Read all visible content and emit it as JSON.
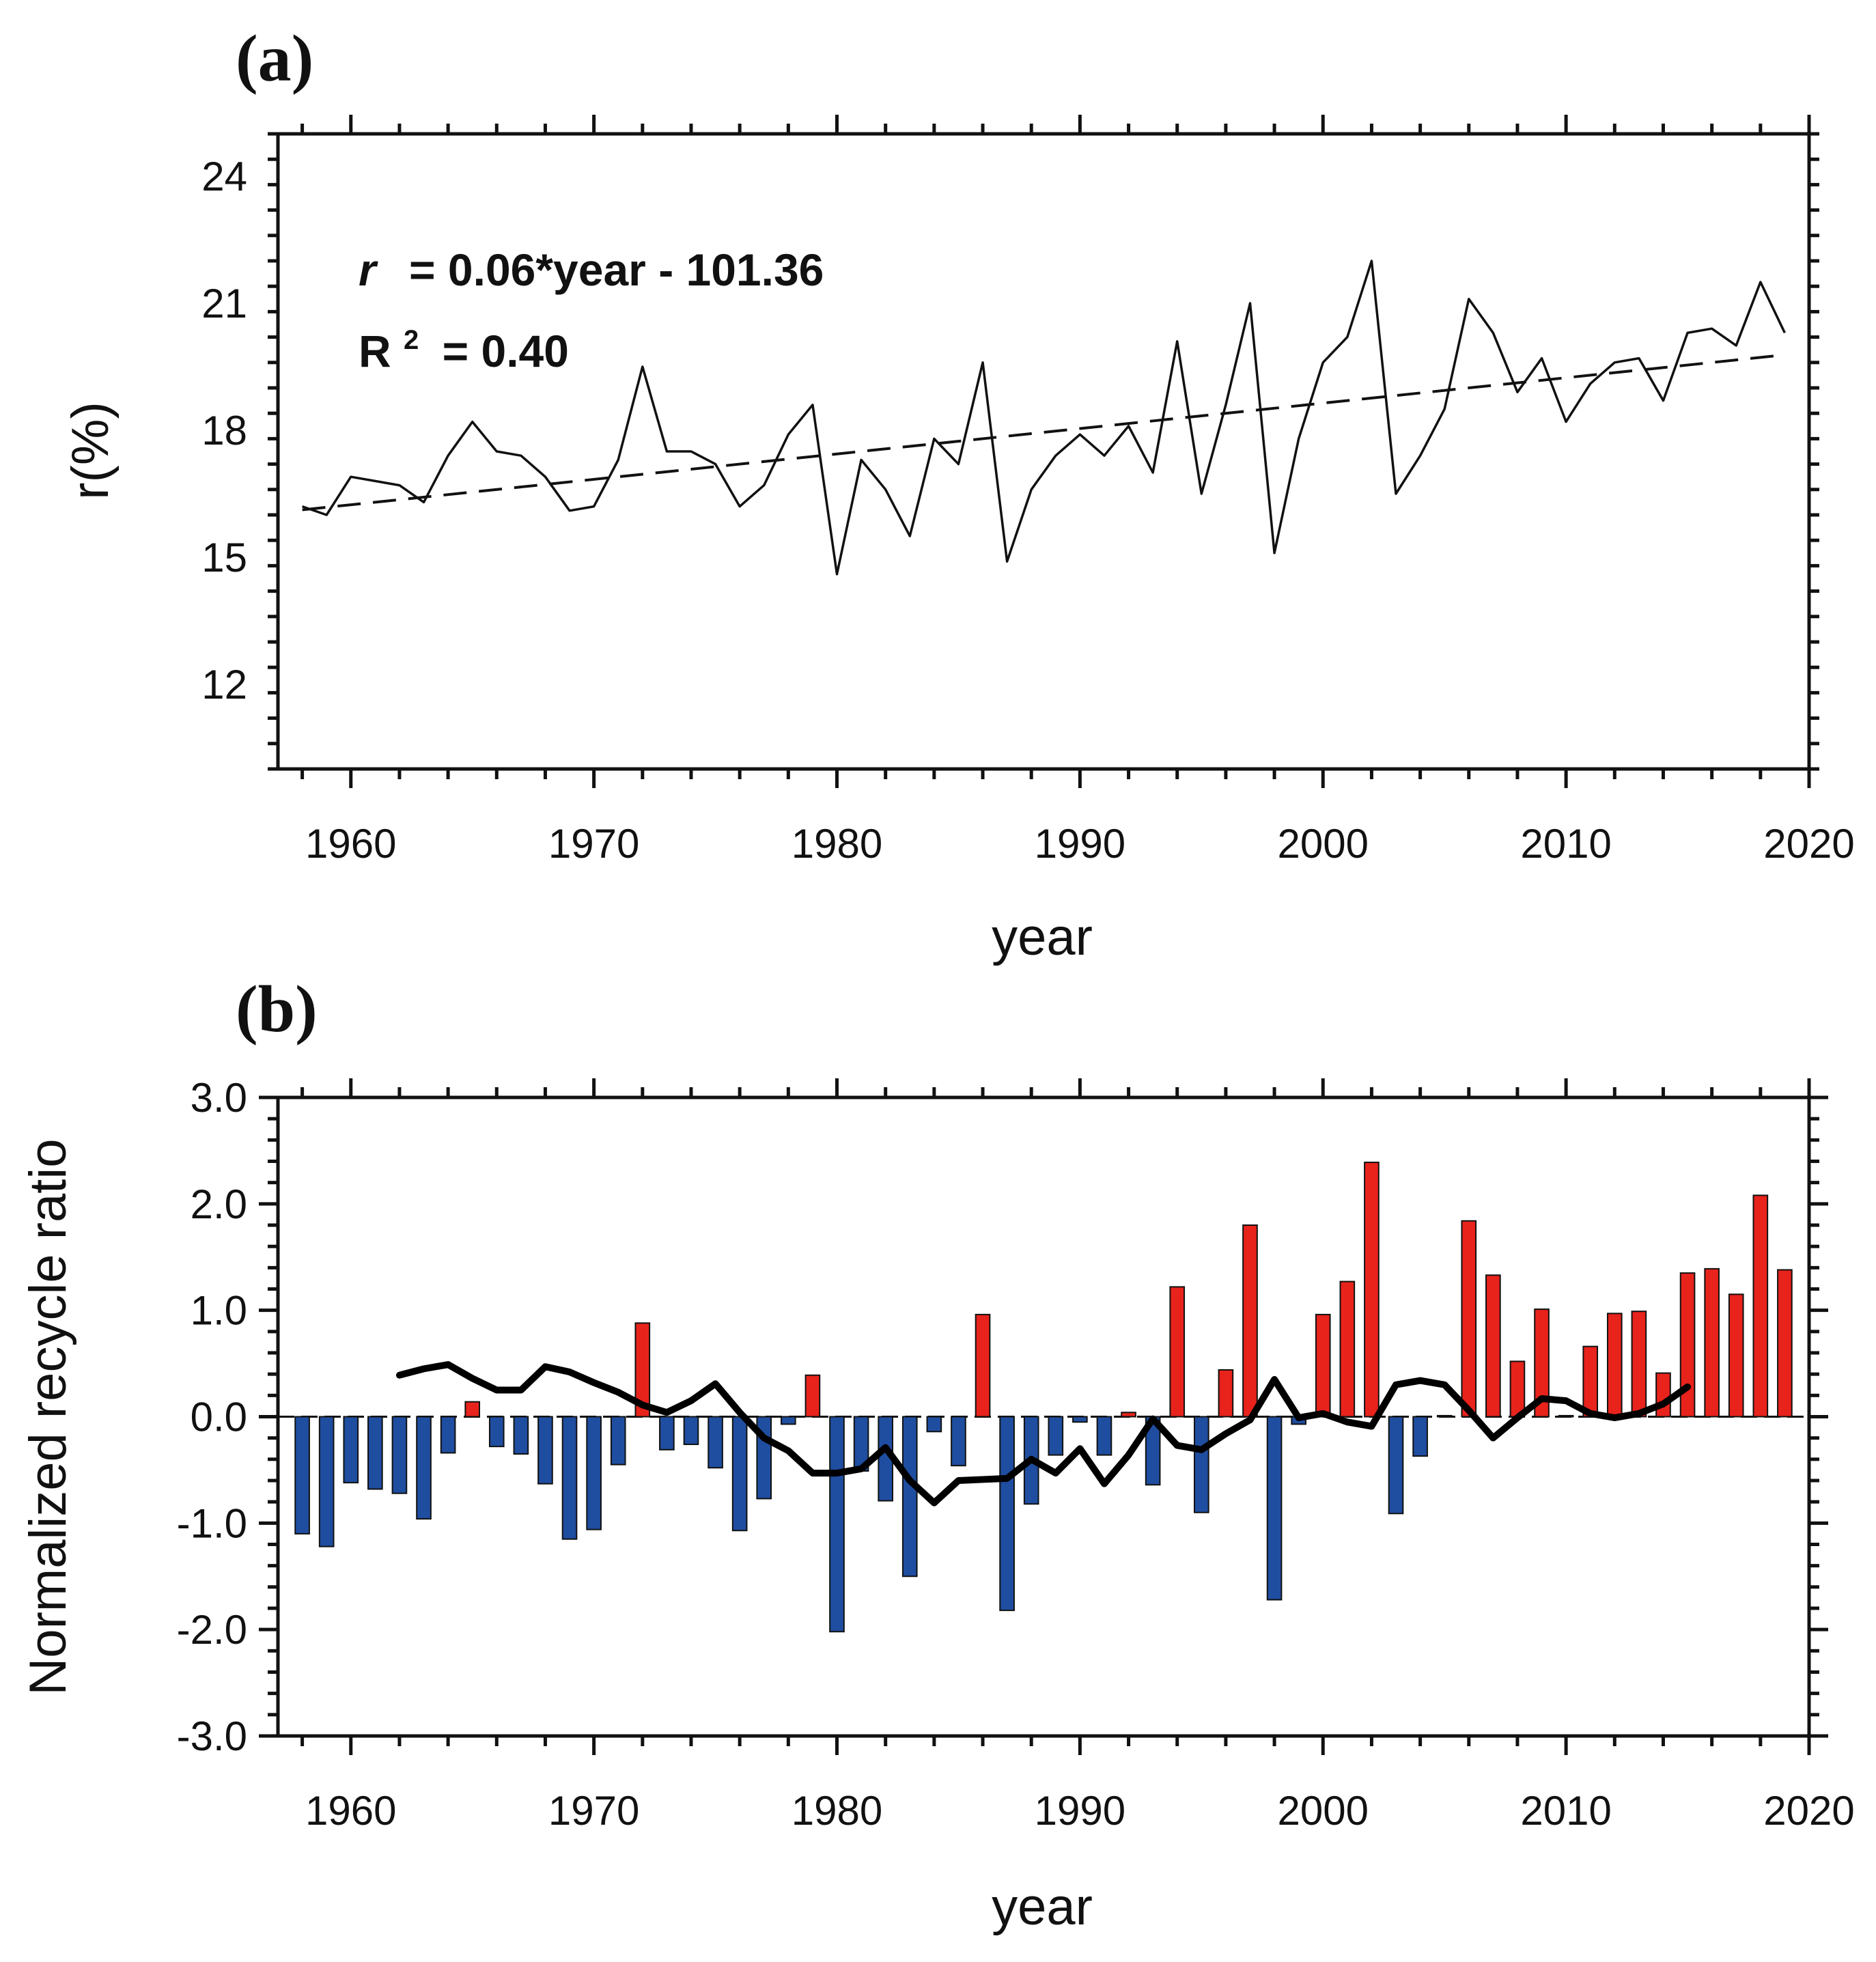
{
  "chart_data": [
    {
      "panel": "(a)",
      "type": "line",
      "xlabel": "year",
      "ylabel": "r(%)",
      "xlim": [
        1957,
        2020
      ],
      "ylim": [
        10,
        25
      ],
      "xticks": [
        1960,
        1970,
        1980,
        1990,
        2000,
        2010,
        2020
      ],
      "xtick_labels": [
        "1960",
        "1970",
        "1980",
        "1990",
        "2000",
        "2010",
        "2020"
      ],
      "yticks": [
        12,
        15,
        18,
        21,
        24
      ],
      "ytick_labels": [
        "12",
        "15",
        "18",
        "21",
        "24"
      ],
      "annotation": {
        "equation_var": "r",
        "equation_rest": "= 0.06*year - 101.36",
        "r2_base": "R",
        "r2_sup": "2",
        "r2_rest": "= 0.40"
      },
      "series": [
        {
          "name": "r",
          "style": "solid",
          "x": [
            1958,
            1959,
            1960,
            1961,
            1962,
            1963,
            1964,
            1965,
            1966,
            1967,
            1968,
            1969,
            1970,
            1971,
            1972,
            1973,
            1974,
            1975,
            1976,
            1977,
            1978,
            1979,
            1980,
            1981,
            1982,
            1983,
            1984,
            1985,
            1986,
            1987,
            1988,
            1989,
            1990,
            1991,
            1992,
            1993,
            1994,
            1995,
            1996,
            1997,
            1998,
            1999,
            2000,
            2001,
            2002,
            2003,
            2004,
            2005,
            2006,
            2007,
            2008,
            2009,
            2010,
            2011,
            2012,
            2013,
            2014,
            2015,
            2016,
            2017,
            2018,
            2019
          ],
          "values": [
            16.2,
            16.0,
            16.9,
            16.8,
            16.7,
            16.3,
            17.4,
            18.2,
            17.5,
            17.4,
            16.9,
            16.1,
            16.2,
            17.3,
            19.5,
            17.5,
            17.5,
            17.2,
            16.2,
            16.7,
            17.9,
            18.6,
            14.6,
            17.3,
            16.6,
            15.5,
            17.8,
            17.2,
            19.6,
            14.9,
            16.6,
            17.4,
            17.9,
            17.4,
            18.1,
            17.0,
            20.1,
            16.5,
            18.6,
            21.0,
            15.1,
            17.8,
            19.6,
            20.2,
            22.0,
            16.5,
            17.4,
            18.5,
            21.1,
            20.3,
            18.9,
            19.7,
            18.2,
            19.1,
            19.6,
            19.7,
            18.7,
            20.3,
            20.4,
            20.0,
            21.5,
            20.3
          ]
        },
        {
          "name": "linear trend",
          "style": "dashed",
          "x": [
            1958,
            2019
          ],
          "values": [
            16.12,
            19.78
          ]
        }
      ]
    },
    {
      "panel": "(b)",
      "type": "bar",
      "xlabel": "year",
      "ylabel": "Normalized recycle ratio",
      "xlim": [
        1957,
        2020
      ],
      "ylim": [
        -3.0,
        3.0
      ],
      "xticks": [
        1960,
        1970,
        1980,
        1990,
        2000,
        2010,
        2020
      ],
      "xtick_labels": [
        "1960",
        "1970",
        "1980",
        "1990",
        "2000",
        "2010",
        "2020"
      ],
      "yticks": [
        -3,
        -2,
        -1,
        0,
        1,
        2,
        3
      ],
      "ytick_labels": [
        "-3.0",
        "-2.0",
        "-1.0",
        "0.0",
        "1.0",
        "2.0",
        "3.0"
      ],
      "colors": {
        "positive": "#e8231c",
        "negative": "#1f4ea0",
        "line": "#000000"
      },
      "x": [
        1958,
        1959,
        1960,
        1961,
        1962,
        1963,
        1964,
        1965,
        1966,
        1967,
        1968,
        1969,
        1970,
        1971,
        1972,
        1973,
        1974,
        1975,
        1976,
        1977,
        1978,
        1979,
        1980,
        1981,
        1982,
        1983,
        1984,
        1985,
        1986,
        1987,
        1988,
        1989,
        1990,
        1991,
        1992,
        1993,
        1994,
        1995,
        1996,
        1997,
        1998,
        1999,
        2000,
        2001,
        2002,
        2003,
        2004,
        2005,
        2006,
        2007,
        2008,
        2009,
        2010,
        2011,
        2012,
        2013,
        2014,
        2015,
        2016,
        2017,
        2018,
        2019
      ],
      "values": [
        -1.1,
        -1.22,
        -0.62,
        -0.68,
        -0.72,
        -0.96,
        -0.34,
        0.14,
        -0.28,
        -0.35,
        -0.63,
        -1.15,
        -1.06,
        -0.45,
        0.88,
        -0.31,
        -0.26,
        -0.48,
        -1.07,
        -0.77,
        -0.07,
        0.39,
        -2.02,
        -0.51,
        -0.79,
        -1.5,
        -0.14,
        -0.46,
        0.96,
        -1.82,
        -0.82,
        -0.36,
        -0.05,
        -0.36,
        0.04,
        -0.64,
        1.22,
        -0.9,
        0.44,
        1.8,
        -1.72,
        -0.07,
        0.96,
        1.27,
        2.39,
        -0.91,
        -0.37,
        0.01,
        1.84,
        1.33,
        0.52,
        1.01,
        0.01,
        0.66,
        0.97,
        0.99,
        0.41,
        1.35,
        1.39,
        1.15,
        2.08,
        1.38
      ],
      "moving_average": {
        "x": [
          1962,
          1963,
          1964,
          1965,
          1966,
          1967,
          1968,
          1969,
          1970,
          1971,
          1972,
          1973,
          1974,
          1975,
          1976,
          1977,
          1978,
          1979,
          1980,
          1981,
          1982,
          1983,
          1984,
          1985,
          1986,
          1987,
          1988,
          1989,
          1990,
          1991,
          1992,
          1993,
          1994,
          1995,
          1996,
          1997,
          1998,
          1999,
          2000,
          2001,
          2002,
          2003,
          2004,
          2005,
          2006,
          2007,
          2008,
          2009,
          2010,
          2011,
          2012,
          2013,
          2014,
          2015
        ],
        "values": [
          0.39,
          0.45,
          0.49,
          0.36,
          0.25,
          0.25,
          0.47,
          0.42,
          0.32,
          0.23,
          0.11,
          0.04,
          0.15,
          0.31,
          0.04,
          -0.2,
          -0.32,
          -0.53,
          -0.53,
          -0.49,
          -0.29,
          -0.6,
          -0.81,
          -0.6,
          -0.59,
          -0.58,
          -0.4,
          -0.53,
          -0.3,
          -0.63,
          -0.36,
          -0.02,
          -0.27,
          -0.31,
          -0.16,
          -0.03,
          0.35,
          -0.01,
          0.03,
          -0.05,
          -0.09,
          0.3,
          0.34,
          0.3,
          0.06,
          -0.2,
          -0.01,
          0.17,
          0.15,
          0.03,
          -0.01,
          0.03,
          0.12,
          0.28
        ]
      }
    }
  ]
}
